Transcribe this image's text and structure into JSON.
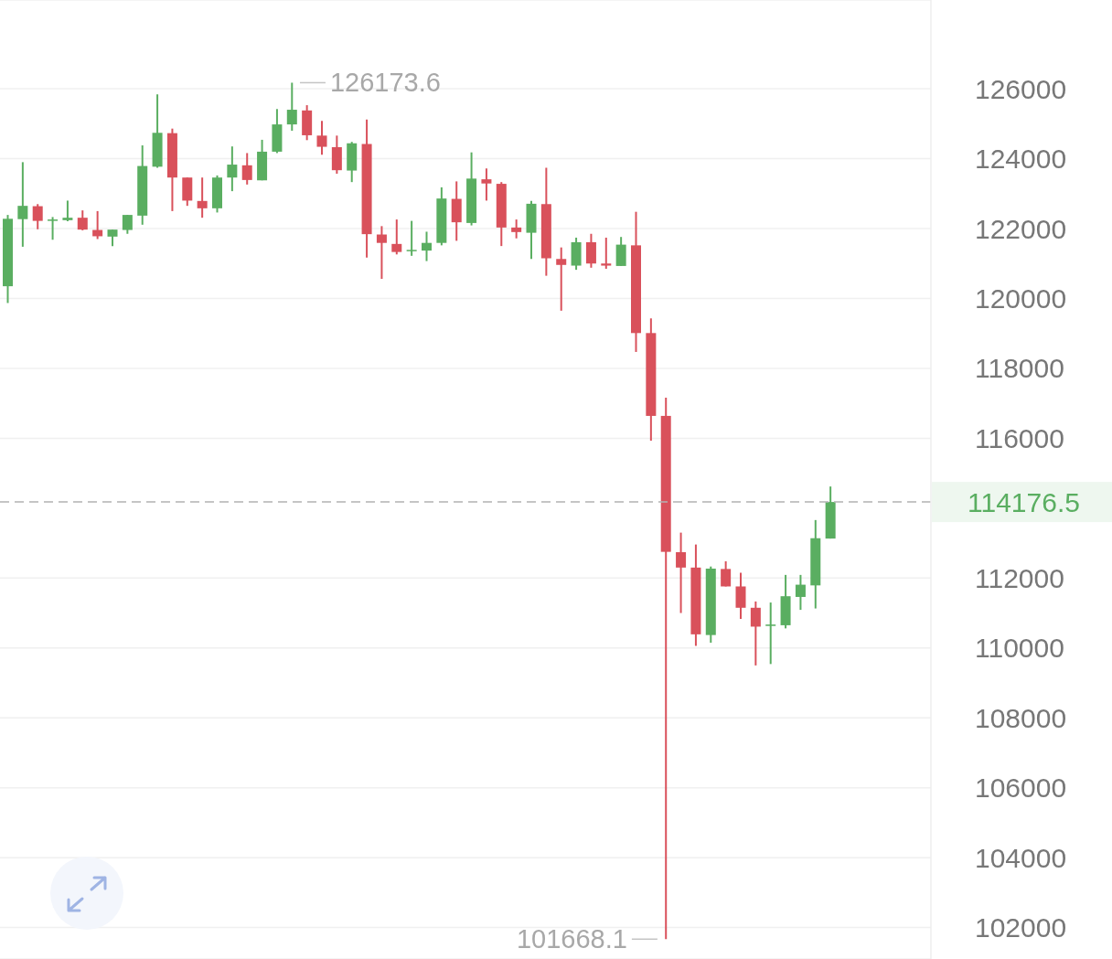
{
  "chart_data": {
    "type": "candlestick",
    "categories": [
      null,
      null,
      null,
      null,
      null,
      null,
      null,
      null,
      null,
      null,
      null,
      null,
      null,
      null,
      null,
      null,
      null,
      null,
      null,
      null,
      null,
      null,
      null,
      null,
      null,
      null,
      null,
      null,
      null,
      null,
      null,
      null,
      null,
      null,
      null,
      null,
      null,
      null,
      null,
      null,
      null,
      null,
      null,
      null,
      null,
      null,
      null,
      null,
      null,
      null,
      null,
      null,
      null,
      null,
      null,
      null
    ],
    "ohlc": [
      [
        120350,
        122390,
        119870,
        122280
      ],
      [
        122270,
        123900,
        121480,
        122650
      ],
      [
        122640,
        122700,
        121980,
        122220
      ],
      [
        122220,
        122330,
        121680,
        122260
      ],
      [
        122240,
        122800,
        122210,
        122310
      ],
      [
        122310,
        122520,
        121950,
        121970
      ],
      [
        121960,
        122500,
        121700,
        121780
      ],
      [
        121770,
        121970,
        121500,
        121970
      ],
      [
        121960,
        122390,
        121850,
        122390
      ],
      [
        122370,
        124380,
        122110,
        123790
      ],
      [
        123770,
        125840,
        123740,
        124740
      ],
      [
        124730,
        124860,
        122500,
        123460
      ],
      [
        123460,
        123460,
        122650,
        122800
      ],
      [
        122790,
        123460,
        122310,
        122580
      ],
      [
        122580,
        123520,
        122460,
        123460
      ],
      [
        123460,
        124350,
        123070,
        123830
      ],
      [
        123810,
        124160,
        123260,
        123390
      ],
      [
        123380,
        124540,
        123380,
        124200
      ],
      [
        124200,
        125420,
        124160,
        124980
      ],
      [
        124980,
        126173.6,
        124800,
        125400
      ],
      [
        125380,
        125530,
        124530,
        124670
      ],
      [
        124660,
        125080,
        124110,
        124340
      ],
      [
        124330,
        124660,
        123570,
        123670
      ],
      [
        123660,
        124480,
        123330,
        124440
      ],
      [
        124420,
        125120,
        121170,
        121840
      ],
      [
        121830,
        122070,
        120560,
        121590
      ],
      [
        121560,
        122260,
        121260,
        121330
      ],
      [
        121360,
        122220,
        121220,
        121390
      ],
      [
        121370,
        121910,
        121070,
        121590
      ],
      [
        121590,
        123180,
        121520,
        122860
      ],
      [
        122850,
        123350,
        121650,
        122180
      ],
      [
        122160,
        124180,
        122090,
        123430
      ],
      [
        123410,
        123720,
        122800,
        123290
      ],
      [
        123280,
        123330,
        121500,
        122030
      ],
      [
        122030,
        122260,
        121720,
        121900
      ],
      [
        121880,
        122790,
        121130,
        122710
      ],
      [
        122700,
        123740,
        120650,
        121150
      ],
      [
        121130,
        121460,
        119650,
        120960
      ],
      [
        120940,
        121740,
        120820,
        121610
      ],
      [
        121610,
        121850,
        120880,
        121000
      ],
      [
        121000,
        121740,
        120850,
        120940
      ],
      [
        120930,
        121760,
        120930,
        121540
      ],
      [
        121520,
        122480,
        118470,
        119010
      ],
      [
        119010,
        119430,
        115930,
        116640
      ],
      [
        116640,
        117160,
        101668.1,
        112750
      ],
      [
        112740,
        113300,
        111000,
        112300
      ],
      [
        112300,
        112960,
        110060,
        110390
      ],
      [
        110370,
        112330,
        110150,
        112270
      ],
      [
        112260,
        112480,
        111760,
        111760
      ],
      [
        111760,
        112150,
        110830,
        111150
      ],
      [
        111150,
        111330,
        109500,
        110610
      ],
      [
        110630,
        111300,
        109540,
        110670
      ],
      [
        110650,
        112090,
        110560,
        111480
      ],
      [
        111460,
        112090,
        111090,
        111810
      ],
      [
        111790,
        113660,
        111130,
        113140
      ],
      [
        113130,
        114620,
        113130,
        114176.5
      ]
    ],
    "colors": [
      "#5aae61",
      "#5aae61",
      "#d9515b",
      "#5aae61",
      "#5aae61",
      "#d9515b",
      "#d9515b",
      "#5aae61",
      "#5aae61",
      "#5aae61",
      "#5aae61",
      "#d9515b",
      "#d9515b",
      "#d9515b",
      "#5aae61",
      "#5aae61",
      "#d9515b",
      "#5aae61",
      "#5aae61",
      "#5aae61",
      "#d9515b",
      "#d9515b",
      "#d9515b",
      "#5aae61",
      "#d9515b",
      "#d9515b",
      "#d9515b",
      "#5aae61",
      "#5aae61",
      "#5aae61",
      "#d9515b",
      "#5aae61",
      "#d9515b",
      "#d9515b",
      "#d9515b",
      "#5aae61",
      "#d9515b",
      "#d9515b",
      "#5aae61",
      "#d9515b",
      "#d9515b",
      "#5aae61",
      "#d9515b",
      "#d9515b",
      "#d9515b",
      "#d9515b",
      "#d9515b",
      "#5aae61",
      "#d9515b",
      "#d9515b",
      "#d9515b",
      "#5aae61",
      "#5aae61",
      "#5aae61",
      "#5aae61",
      "#5aae61"
    ],
    "ylim": [
      101100,
      128540
    ],
    "yticks": [
      102000,
      104000,
      106000,
      108000,
      110000,
      112000,
      116000,
      118000,
      120000,
      122000,
      124000,
      126000
    ],
    "grid": "y",
    "tick_labels": "y",
    "ref_lines": [
      {
        "axis": "y",
        "value": 114176.5,
        "label": "114176.5",
        "color": "#b3b3b3",
        "line_style": "dashed"
      }
    ],
    "annotations": [
      "126173.6",
      "101668.1"
    ]
  }
}
